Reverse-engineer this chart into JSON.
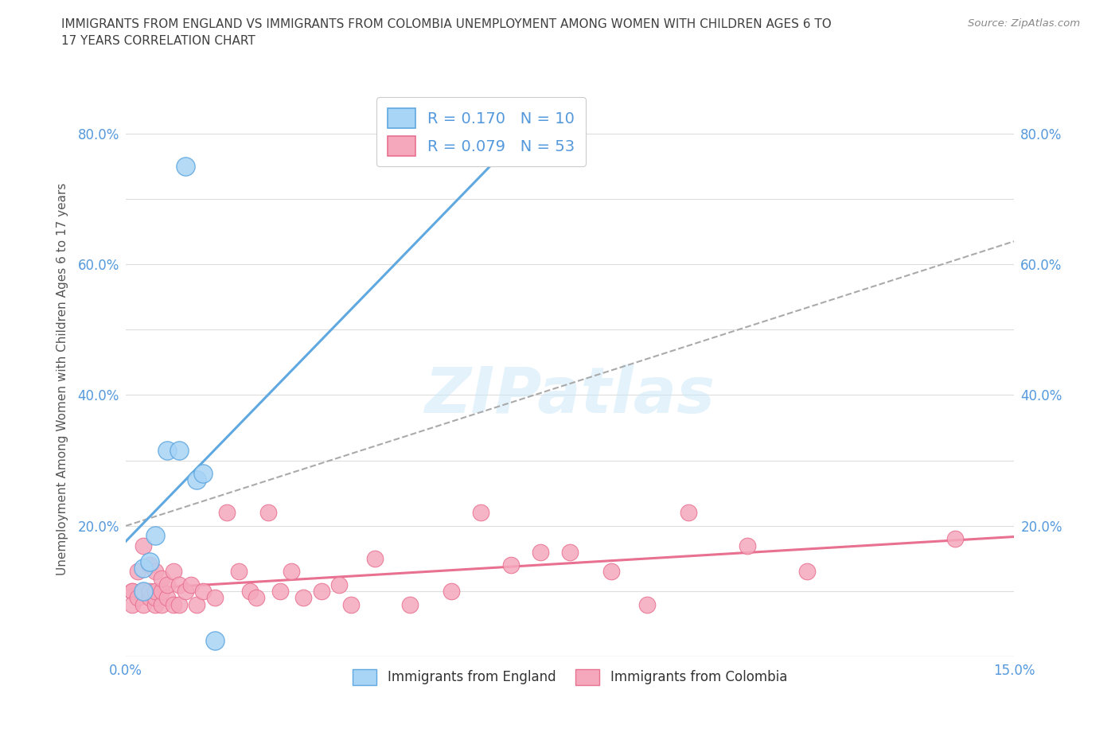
{
  "title": "IMMIGRANTS FROM ENGLAND VS IMMIGRANTS FROM COLOMBIA UNEMPLOYMENT AMONG WOMEN WITH CHILDREN AGES 6 TO\n17 YEARS CORRELATION CHART",
  "source": "Source: ZipAtlas.com",
  "ylabel": "Unemployment Among Women with Children Ages 6 to 17 years",
  "xlim": [
    0.0,
    0.15
  ],
  "ylim": [
    0.0,
    0.85
  ],
  "xticks": [
    0.0,
    0.025,
    0.05,
    0.075,
    0.1,
    0.125,
    0.15
  ],
  "xtick_labels": [
    "0.0%",
    "",
    "",
    "",
    "",
    "",
    "15.0%"
  ],
  "yticks": [
    0.0,
    0.1,
    0.2,
    0.3,
    0.4,
    0.5,
    0.6,
    0.7,
    0.8
  ],
  "ytick_labels": [
    "",
    "",
    "20.0%",
    "",
    "40.0%",
    "",
    "60.0%",
    "",
    "80.0%"
  ],
  "watermark": "ZIPatlas",
  "england_color": "#a8d4f5",
  "colombia_color": "#f5a8bc",
  "england_edge_color": "#60a8e0",
  "colombia_edge_color": "#e87090",
  "england_line_color": "#60a8e0",
  "colombia_line_color": "#e87090",
  "england_R": 0.17,
  "england_N": 10,
  "colombia_R": 0.079,
  "colombia_N": 53,
  "england_x": [
    0.003,
    0.003,
    0.004,
    0.005,
    0.007,
    0.009,
    0.01,
    0.012,
    0.013,
    0.015
  ],
  "england_y": [
    0.135,
    0.1,
    0.145,
    0.185,
    0.315,
    0.315,
    0.75,
    0.27,
    0.28,
    0.025
  ],
  "colombia_x": [
    0.001,
    0.001,
    0.001,
    0.002,
    0.002,
    0.003,
    0.003,
    0.003,
    0.004,
    0.004,
    0.004,
    0.005,
    0.005,
    0.005,
    0.005,
    0.006,
    0.006,
    0.006,
    0.007,
    0.007,
    0.008,
    0.008,
    0.009,
    0.009,
    0.01,
    0.011,
    0.012,
    0.013,
    0.015,
    0.017,
    0.019,
    0.021,
    0.022,
    0.024,
    0.026,
    0.028,
    0.03,
    0.033,
    0.036,
    0.038,
    0.042,
    0.048,
    0.055,
    0.06,
    0.065,
    0.07,
    0.075,
    0.082,
    0.088,
    0.095,
    0.105,
    0.115,
    0.14
  ],
  "colombia_y": [
    0.1,
    0.1,
    0.08,
    0.09,
    0.13,
    0.08,
    0.1,
    0.17,
    0.09,
    0.1,
    0.14,
    0.08,
    0.09,
    0.1,
    0.13,
    0.08,
    0.1,
    0.12,
    0.09,
    0.11,
    0.08,
    0.13,
    0.08,
    0.11,
    0.1,
    0.11,
    0.08,
    0.1,
    0.09,
    0.22,
    0.13,
    0.1,
    0.09,
    0.22,
    0.1,
    0.13,
    0.09,
    0.1,
    0.11,
    0.08,
    0.15,
    0.08,
    0.1,
    0.22,
    0.14,
    0.16,
    0.16,
    0.13,
    0.08,
    0.22,
    0.17,
    0.13,
    0.18
  ],
  "legend_label_england": "Immigrants from England",
  "legend_label_colombia": "Immigrants from Colombia",
  "background_color": "#ffffff",
  "grid_color": "#dddddd",
  "title_color": "#404040",
  "axis_label_color": "#555555",
  "tick_color": "#5599dd",
  "RN_color": "#5599dd",
  "legend_text_color": "#333333",
  "dashed_line_x": [
    0.0,
    0.15
  ],
  "dashed_line_y": [
    0.2,
    0.635
  ],
  "dashed_line_color": "#aaaaaa"
}
